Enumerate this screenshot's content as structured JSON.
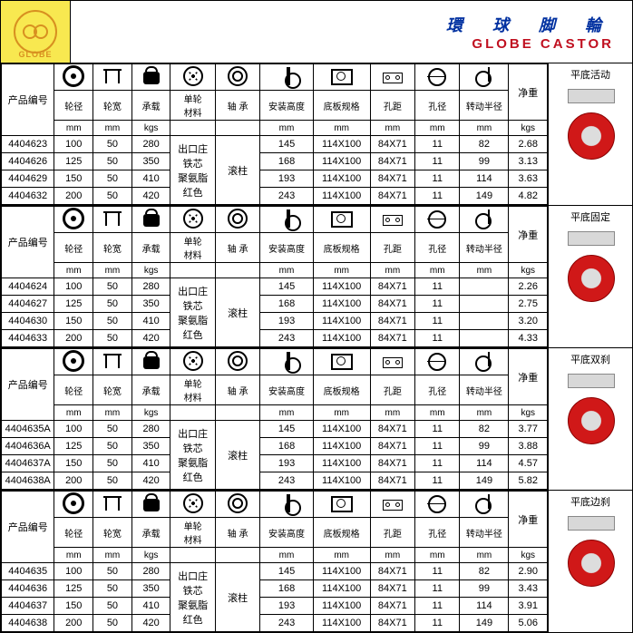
{
  "header": {
    "cn": "環 球 脚 輪",
    "en": "GLOBE   CASTOR",
    "logo": "GLOBE"
  },
  "labels": {
    "code": "产品编号",
    "cols": [
      "轮径",
      "轮宽",
      "承载",
      "单轮\n材料",
      "轴 承",
      "安装高度",
      "底板规格",
      "孔距",
      "孔径",
      "转动半径",
      "净重"
    ],
    "units": [
      "mm",
      "mm",
      "kgs",
      "",
      "",
      "mm",
      "mm",
      "mm",
      "mm",
      "mm",
      "kgs"
    ],
    "material": "出口庄\n铁芯\n聚氨脂\n红色",
    "bearing": "滚柱"
  },
  "sections": [
    {
      "caption": "平底活动",
      "rows": [
        [
          "4404623",
          "100",
          "50",
          "280",
          "145",
          "114X100",
          "84X71",
          "11",
          "82",
          "2.68"
        ],
        [
          "4404626",
          "125",
          "50",
          "350",
          "168",
          "114X100",
          "84X71",
          "11",
          "99",
          "3.13"
        ],
        [
          "4404629",
          "150",
          "50",
          "410",
          "193",
          "114X100",
          "84X71",
          "11",
          "114",
          "3.63"
        ],
        [
          "4404632",
          "200",
          "50",
          "420",
          "243",
          "114X100",
          "84X71",
          "11",
          "149",
          "4.82"
        ]
      ]
    },
    {
      "caption": "平底固定",
      "rows": [
        [
          "4404624",
          "100",
          "50",
          "280",
          "145",
          "114X100",
          "84X71",
          "11",
          "",
          "2.26"
        ],
        [
          "4404627",
          "125",
          "50",
          "350",
          "168",
          "114X100",
          "84X71",
          "11",
          "",
          "2.75"
        ],
        [
          "4404630",
          "150",
          "50",
          "410",
          "193",
          "114X100",
          "84X71",
          "11",
          "",
          "3.20"
        ],
        [
          "4404633",
          "200",
          "50",
          "420",
          "243",
          "114X100",
          "84X71",
          "11",
          "",
          "4.33"
        ]
      ]
    },
    {
      "caption": "平底双刹",
      "rows": [
        [
          "4404635A",
          "100",
          "50",
          "280",
          "145",
          "114X100",
          "84X71",
          "11",
          "82",
          "3.77"
        ],
        [
          "4404636A",
          "125",
          "50",
          "350",
          "168",
          "114X100",
          "84X71",
          "11",
          "99",
          "3.88"
        ],
        [
          "4404637A",
          "150",
          "50",
          "410",
          "193",
          "114X100",
          "84X71",
          "11",
          "114",
          "4.57"
        ],
        [
          "4404638A",
          "200",
          "50",
          "420",
          "243",
          "114X100",
          "84X71",
          "11",
          "149",
          "5.82"
        ]
      ]
    },
    {
      "caption": "平底边刹",
      "rows": [
        [
          "4404635",
          "100",
          "50",
          "280",
          "145",
          "114X100",
          "84X71",
          "11",
          "82",
          "2.90"
        ],
        [
          "4404636",
          "125",
          "50",
          "350",
          "168",
          "114X100",
          "84X71",
          "11",
          "99",
          "3.43"
        ],
        [
          "4404637",
          "150",
          "50",
          "410",
          "193",
          "114X100",
          "84X71",
          "11",
          "114",
          "3.91"
        ],
        [
          "4404638",
          "200",
          "50",
          "420",
          "243",
          "114X100",
          "84X71",
          "11",
          "149",
          "5.06"
        ]
      ]
    }
  ]
}
